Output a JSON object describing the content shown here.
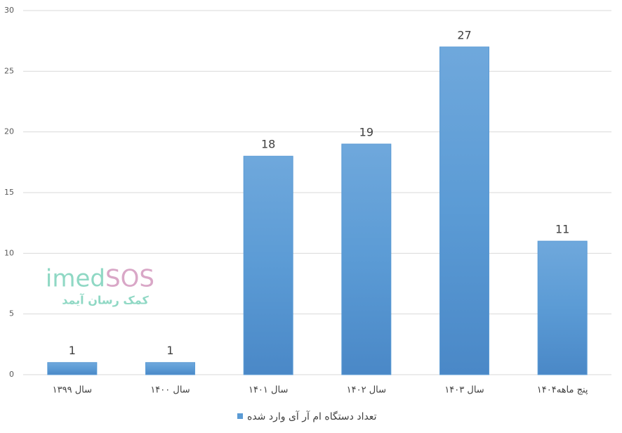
{
  "chart_data": {
    "type": "bar",
    "categories": [
      "سال ۱۳۹۹",
      "سال ۱۴۰۰",
      "سال ۱۴۰۱",
      "سال ۱۴۰۲",
      "سال ۱۴۰۳",
      "پنج ماهه۱۴۰۴"
    ],
    "series": [
      {
        "name": "تعداد دستگاه ام آر آی وارد شده",
        "color": "#5b9bd5",
        "values": [
          1,
          1,
          18,
          19,
          27,
          11
        ]
      }
    ],
    "ylim": [
      0,
      30
    ],
    "yticks": [
      0,
      5,
      10,
      15,
      20,
      25,
      30
    ],
    "grid": true,
    "legend": "bottom"
  },
  "watermark": {
    "brand_a": "imed",
    "brand_b": "SOS",
    "tagline": "کمک رسان آیمد"
  }
}
